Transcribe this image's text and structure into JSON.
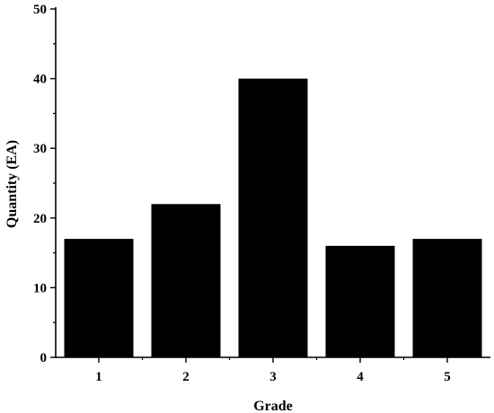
{
  "chart_data": {
    "type": "bar",
    "categories": [
      "1",
      "2",
      "3",
      "4",
      "5"
    ],
    "values": [
      17,
      22,
      40,
      16,
      17
    ],
    "title": "",
    "xlabel": "Grade",
    "ylabel": "Quantity (EA)",
    "ylim": [
      0,
      50
    ],
    "yticks": [
      0,
      10,
      20,
      30,
      40,
      50
    ],
    "minor_ytick_step": 5,
    "grid": false,
    "legend": "none",
    "bar_color": "#000000"
  }
}
